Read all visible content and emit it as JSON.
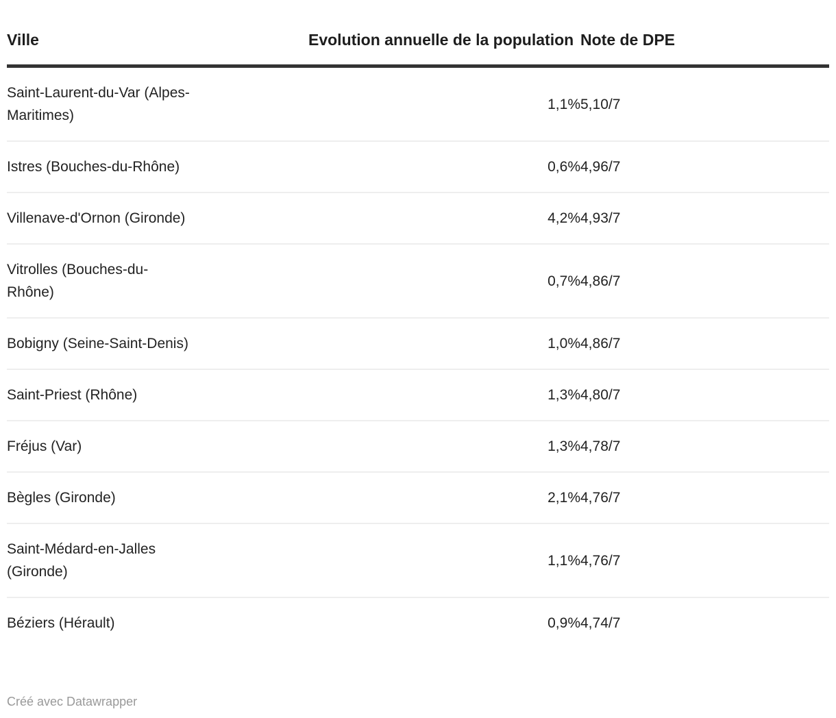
{
  "colors": {
    "background": "#ffffff",
    "text": "#222222",
    "header_text": "#1d1d1d",
    "header_rule": "#333333",
    "row_divider": "#eeeeee",
    "credit_text": "#999999"
  },
  "table": {
    "header": {
      "ville": "Ville",
      "evolution": "Evolution annuelle de la population",
      "note": "Note de DPE"
    },
    "rows": [
      {
        "ville": "Saint-Laurent-du-Var (Alpes-\nMaritimes)",
        "evolution": "1,1%",
        "note": "5,10/7"
      },
      {
        "ville": "Istres (Bouches-du-Rhône)",
        "evolution": "0,6%",
        "note": "4,96/7"
      },
      {
        "ville": "Villenave-d'Ornon (Gironde)",
        "evolution": "4,2%",
        "note": "4,93/7"
      },
      {
        "ville": "Vitrolles (Bouches-du-\nRhône)",
        "evolution": "0,7%",
        "note": "4,86/7"
      },
      {
        "ville": "Bobigny (Seine-Saint-Denis)",
        "evolution": "1,0%",
        "note": "4,86/7"
      },
      {
        "ville": "Saint-Priest (Rhône)",
        "evolution": "1,3%",
        "note": "4,80/7"
      },
      {
        "ville": "Fréjus (Var)",
        "evolution": "1,3%",
        "note": "4,78/7"
      },
      {
        "ville": "Bègles (Gironde)",
        "evolution": "2,1%",
        "note": "4,76/7"
      },
      {
        "ville": "Saint-Médard-en-Jalles\n(Gironde)",
        "evolution": "1,1%",
        "note": "4,76/7"
      },
      {
        "ville": "Béziers (Hérault)",
        "evolution": "0,9%",
        "note": "4,74/7"
      }
    ]
  },
  "footer": {
    "credit": "Créé avec Datawrapper"
  },
  "chart_data": {
    "type": "table",
    "columns": [
      "Ville",
      "Evolution annuelle de la population",
      "Note de DPE"
    ],
    "rows": [
      [
        "Saint-Laurent-du-Var (Alpes-Maritimes)",
        "1,1%",
        "5,10/7"
      ],
      [
        "Istres (Bouches-du-Rhône)",
        "0,6%",
        "4,96/7"
      ],
      [
        "Villenave-d'Ornon (Gironde)",
        "4,2%",
        "4,93/7"
      ],
      [
        "Vitrolles (Bouches-du-Rhône)",
        "0,7%",
        "4,86/7"
      ],
      [
        "Bobigny (Seine-Saint-Denis)",
        "1,0%",
        "4,86/7"
      ],
      [
        "Saint-Priest (Rhône)",
        "1,3%",
        "4,80/7"
      ],
      [
        "Fréjus (Var)",
        "1,3%",
        "4,78/7"
      ],
      [
        "Bègles (Gironde)",
        "2,1%",
        "4,76/7"
      ],
      [
        "Saint-Médard-en-Jalles (Gironde)",
        "1,1%",
        "4,76/7"
      ],
      [
        "Béziers (Hérault)",
        "0,9%",
        "4,74/7"
      ]
    ],
    "evolution_values_pct": [
      1.1,
      0.6,
      4.2,
      0.7,
      1.0,
      1.3,
      1.3,
      2.1,
      1.1,
      0.9
    ],
    "note_dpe_values": [
      5.1,
      4.96,
      4.93,
      4.86,
      4.86,
      4.8,
      4.78,
      4.76,
      4.76,
      4.74
    ],
    "note_dpe_scale_max": 7,
    "footer": "Créé avec Datawrapper"
  }
}
